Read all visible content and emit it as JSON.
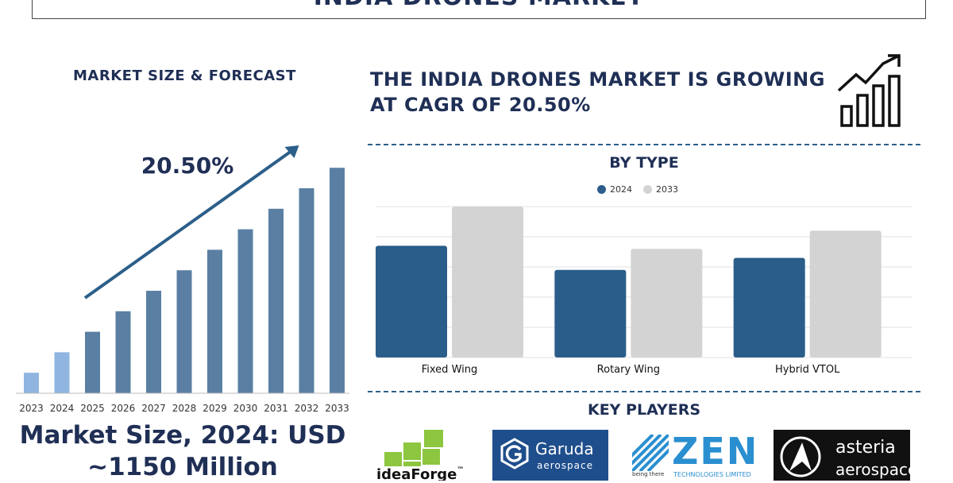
{
  "header": {
    "title": "INDIA DRONES MARKET"
  },
  "left_panel": {
    "heading": "MARKET SIZE & FORECAST",
    "cagr_label": "20.50%",
    "market_size_line1": "Market Size, 2024: USD",
    "market_size_line2": "~1150 Million"
  },
  "growth_panel": {
    "heading_line1": "THE INDIA DRONES MARKET IS GROWING",
    "heading_line2": "AT CAGR OF 20.50%",
    "icon": "growth-bars-arrow-icon"
  },
  "by_type": {
    "heading": "BY TYPE"
  },
  "key_players": {
    "heading": "KEY PLAYERS",
    "logos": [
      {
        "name": "ideaForge",
        "text": "ideaForge",
        "tm": "™"
      },
      {
        "name": "Garuda Aerospace",
        "text1": "Garuda",
        "text2": "aerospace"
      },
      {
        "name": "Zen Technologies",
        "text1": "ZEN",
        "text2": "being there",
        "text3": "TECHNOLOGIES LIMITED"
      },
      {
        "name": "Asteria Aerospace",
        "text1": "asteria",
        "text2": "aerospace"
      }
    ]
  },
  "colors": {
    "navy": "#1f2f55",
    "bar_2024": "#2a5d89",
    "bar_2033": "#d3d3d3",
    "forecast_light": "#8fb5e0",
    "forecast_dark": "#5b7fa3"
  },
  "chart_data": [
    {
      "type": "bar",
      "title": "MARKET SIZE & FORECAST",
      "categories": [
        "2023",
        "2024",
        "2025",
        "2026",
        "2027",
        "2028",
        "2029",
        "2030",
        "2031",
        "2032",
        "2033"
      ],
      "values": [
        1,
        2,
        3,
        4,
        5,
        6,
        7,
        8,
        9,
        10,
        11
      ],
      "annotation": "20.50%",
      "grid": false
    },
    {
      "type": "bar",
      "title": "BY TYPE",
      "categories": [
        "Fixed Wing",
        "Rotary Wing",
        "Hybrid VTOL"
      ],
      "series": [
        {
          "name": "2024",
          "values": [
            3.7,
            2.9,
            3.3
          ]
        },
        {
          "name": "2033",
          "values": [
            5.0,
            3.6,
            4.2
          ]
        }
      ],
      "ylim": [
        0,
        5.0
      ],
      "grid": true,
      "legend": "top-center"
    }
  ]
}
